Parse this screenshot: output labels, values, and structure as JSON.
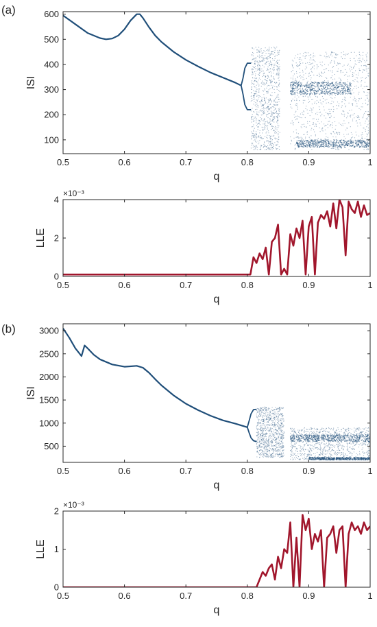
{
  "figure": {
    "panel_labels": [
      "(a)",
      "(b)"
    ]
  },
  "colors": {
    "isi": "#1f4e79",
    "lle": "#a1162c",
    "axis": "#262626"
  },
  "chart_data": [
    {
      "id": "a-isi",
      "type": "scatter",
      "panel": "(a)",
      "xlabel": "q",
      "ylabel": "ISI",
      "xlim": [
        0.5,
        1.0
      ],
      "ylim": [
        45,
        610
      ],
      "xticks": [
        0.5,
        0.6,
        0.7,
        0.8,
        0.9,
        1.0
      ],
      "xtick_labels": [
        "0.5",
        "0.6",
        "0.7",
        "0.8",
        "0.9",
        "1"
      ],
      "yticks": [
        100,
        200,
        300,
        400,
        500,
        600
      ],
      "ytick_labels": [
        "100",
        "200",
        "300",
        "400",
        "500",
        "600"
      ],
      "grid": false,
      "series": [
        {
          "kind": "curve",
          "x": [
            0.5,
            0.52,
            0.54,
            0.56,
            0.57,
            0.58,
            0.59,
            0.6,
            0.61,
            0.62,
            0.625,
            0.63,
            0.64,
            0.65,
            0.66,
            0.68,
            0.7,
            0.72,
            0.74,
            0.76,
            0.78,
            0.79
          ],
          "y": [
            595,
            560,
            525,
            505,
            500,
            503,
            515,
            540,
            575,
            600,
            600,
            585,
            548,
            515,
            490,
            450,
            418,
            392,
            368,
            348,
            328,
            316
          ]
        },
        {
          "kind": "bifurcation",
          "branches": [
            {
              "x": [
                0.79,
                0.793,
                0.796,
                0.8,
                0.806
              ],
              "y": [
                316,
                345,
                385,
                405,
                405
              ]
            },
            {
              "x": [
                0.79,
                0.793,
                0.796,
                0.8,
                0.806
              ],
              "y": [
                316,
                282,
                240,
                220,
                220
              ]
            }
          ]
        },
        {
          "kind": "chaotic",
          "regions": [
            {
              "x": [
                0.806,
                0.853
              ],
              "y": [
                60,
                470
              ]
            },
            {
              "x": [
                0.87,
                1.0
              ],
              "y": [
                60,
                450
              ]
            }
          ],
          "dense_bands": [
            {
              "x": [
                0.88,
                1.0
              ],
              "y": [
                70,
                100
              ]
            },
            {
              "x": [
                0.87,
                0.97
              ],
              "y": [
                280,
                330
              ]
            }
          ]
        }
      ]
    },
    {
      "id": "a-lle",
      "type": "line",
      "panel": "(a)",
      "xlabel": "q",
      "ylabel": "LLE",
      "exponent": "×10⁻³",
      "xlim": [
        0.5,
        1.0
      ],
      "ylim": [
        0,
        4
      ],
      "xticks": [
        0.5,
        0.6,
        0.7,
        0.8,
        0.9,
        1.0
      ],
      "xtick_labels": [
        "0.5",
        "0.6",
        "0.7",
        "0.8",
        "0.9",
        "1"
      ],
      "yticks": [
        0,
        2,
        4
      ],
      "ytick_labels": [
        "0",
        "2",
        "4"
      ],
      "grid": false,
      "x": [
        0.5,
        0.805,
        0.81,
        0.815,
        0.82,
        0.825,
        0.83,
        0.835,
        0.84,
        0.845,
        0.85,
        0.855,
        0.86,
        0.865,
        0.87,
        0.875,
        0.88,
        0.885,
        0.89,
        0.895,
        0.9,
        0.905,
        0.91,
        0.915,
        0.92,
        0.925,
        0.93,
        0.935,
        0.94,
        0.945,
        0.95,
        0.955,
        0.96,
        0.965,
        0.97,
        0.975,
        0.98,
        0.985,
        0.99,
        0.995,
        1.0
      ],
      "values": [
        0.1,
        0.1,
        1.0,
        0.7,
        1.2,
        0.9,
        1.5,
        0.1,
        1.8,
        2.0,
        2.7,
        0.1,
        0.4,
        0.1,
        2.2,
        1.6,
        2.5,
        2.0,
        2.9,
        0.1,
        2.6,
        3.1,
        0.1,
        2.8,
        3.2,
        3.0,
        3.4,
        2.6,
        3.8,
        2.5,
        4.0,
        3.6,
        1.1,
        3.9,
        3.5,
        3.3,
        3.9,
        3.1,
        3.7,
        3.2,
        3.3
      ]
    },
    {
      "id": "b-isi",
      "type": "scatter",
      "panel": "(b)",
      "xlabel": "q",
      "ylabel": "ISI",
      "xlim": [
        0.5,
        1.0
      ],
      "ylim": [
        150,
        3150
      ],
      "xticks": [
        0.5,
        0.6,
        0.7,
        0.8,
        0.9,
        1.0
      ],
      "xtick_labels": [
        "0.5",
        "0.6",
        "0.7",
        "0.8",
        "0.9",
        "1"
      ],
      "yticks": [
        500,
        1000,
        1500,
        2000,
        2500,
        3000
      ],
      "ytick_labels": [
        "500",
        "1000",
        "1500",
        "2000",
        "2500",
        "3000"
      ],
      "grid": false,
      "series": [
        {
          "kind": "curve",
          "x": [
            0.5,
            0.51,
            0.52,
            0.53,
            0.535,
            0.54,
            0.55,
            0.56,
            0.58,
            0.6,
            0.62,
            0.63,
            0.64,
            0.65,
            0.66,
            0.68,
            0.7,
            0.72,
            0.74,
            0.76,
            0.78,
            0.8
          ],
          "y": [
            3050,
            2850,
            2620,
            2450,
            2680,
            2620,
            2480,
            2380,
            2270,
            2220,
            2240,
            2200,
            2090,
            1950,
            1820,
            1600,
            1420,
            1280,
            1160,
            1060,
            990,
            910
          ]
        },
        {
          "kind": "bifurcation",
          "branches": [
            {
              "x": [
                0.8,
                0.803,
                0.806,
                0.81,
                0.815
              ],
              "y": [
                910,
                1050,
                1200,
                1290,
                1300
              ]
            },
            {
              "x": [
                0.8,
                0.803,
                0.806,
                0.81,
                0.815
              ],
              "y": [
                910,
                790,
                680,
                620,
                600
              ]
            }
          ]
        },
        {
          "kind": "chaotic",
          "regions": [
            {
              "x": [
                0.815,
                0.86
              ],
              "y": [
                250,
                1350
              ]
            },
            {
              "x": [
                0.87,
                1.0
              ],
              "y": [
                200,
                900
              ]
            }
          ],
          "dense_bands": [
            {
              "x": [
                0.9,
                1.0
              ],
              "y": [
                200,
                260
              ]
            },
            {
              "x": [
                0.87,
                1.0
              ],
              "y": [
                600,
                750
              ]
            }
          ]
        }
      ]
    },
    {
      "id": "b-lle",
      "type": "line",
      "panel": "(b)",
      "xlabel": "q",
      "ylabel": "LLE",
      "exponent": "×10⁻³",
      "xlim": [
        0.5,
        1.0
      ],
      "ylim": [
        0,
        2
      ],
      "xticks": [
        0.5,
        0.6,
        0.7,
        0.8,
        0.9,
        1.0
      ],
      "xtick_labels": [
        "0.5",
        "0.6",
        "0.7",
        "0.8",
        "0.9",
        "1"
      ],
      "yticks": [
        0,
        1,
        2
      ],
      "ytick_labels": [
        "0",
        "1",
        "2"
      ],
      "grid": false,
      "x": [
        0.5,
        0.815,
        0.82,
        0.825,
        0.83,
        0.835,
        0.84,
        0.845,
        0.85,
        0.855,
        0.86,
        0.865,
        0.87,
        0.875,
        0.88,
        0.885,
        0.89,
        0.895,
        0.9,
        0.905,
        0.91,
        0.915,
        0.92,
        0.925,
        0.93,
        0.935,
        0.94,
        0.945,
        0.95,
        0.955,
        0.96,
        0.965,
        0.97,
        0.975,
        0.98,
        0.985,
        0.99,
        0.995,
        1.0
      ],
      "values": [
        0,
        0,
        0.2,
        0.4,
        0.3,
        0.5,
        0.6,
        0.2,
        0.8,
        0.5,
        1.0,
        0.9,
        1.7,
        0.0,
        1.3,
        0.0,
        1.9,
        1.5,
        1.8,
        1.0,
        1.4,
        1.2,
        1.5,
        0.0,
        1.3,
        1.4,
        1.6,
        0.9,
        1.5,
        1.6,
        0.0,
        1.4,
        1.7,
        1.5,
        1.6,
        1.4,
        1.7,
        1.5,
        1.6
      ]
    }
  ]
}
